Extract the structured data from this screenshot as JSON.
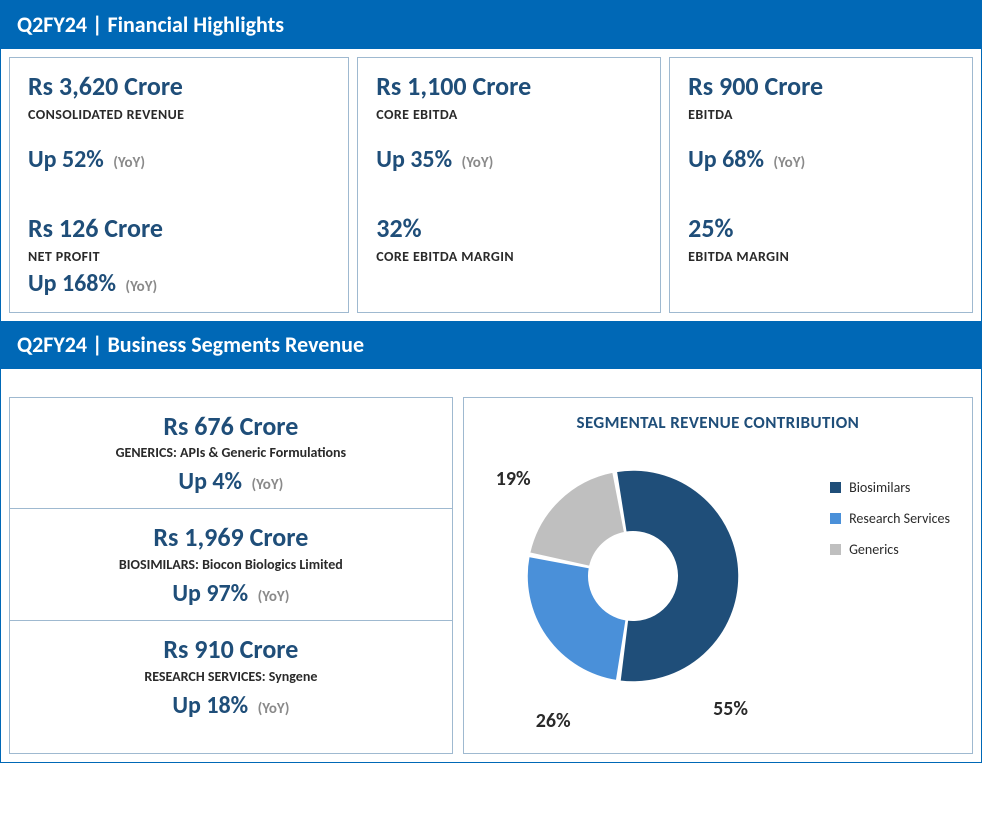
{
  "headers": {
    "financial": "Q2FY24 | Financial Highlights",
    "segments": "Q2FY24 | Business Segments Revenue"
  },
  "yoy_suffix": "(YoY)",
  "highlights": {
    "col1": {
      "m1_value": "Rs 3,620 Crore",
      "m1_label": "CONSOLIDATED REVENUE",
      "m1_change": "Up 52%",
      "m2_value": "Rs 126 Crore",
      "m2_label": "NET PROFIT",
      "m2_change": "Up 168%"
    },
    "col2": {
      "m1_value": "Rs 1,100 Crore",
      "m1_label": "CORE EBITDA",
      "m1_change": "Up 35%",
      "m2_value": "32%",
      "m2_label": "CORE EBITDA MARGIN"
    },
    "col3": {
      "m1_value": "Rs 900 Crore",
      "m1_label": "EBITDA",
      "m1_change": "Up 68%",
      "m2_value": "25%",
      "m2_label": "EBITDA MARGIN"
    }
  },
  "segments": {
    "s1_value": "Rs 676 Crore",
    "s1_label": "GENERICS: APIs & Generic Formulations",
    "s1_change": "Up 4%",
    "s2_value": "Rs 1,969 Crore",
    "s2_label": "BIOSIMILARS: Biocon Biologics Limited",
    "s2_change": "Up 97%",
    "s3_value": "Rs 910 Crore",
    "s3_label": "RESEARCH SERVICES: Syngene",
    "s3_change": "Up 18%"
  },
  "chart": {
    "type": "donut",
    "title": "SEGMENTAL REVENUE CONTRIBUTION",
    "hole_ratio": 0.42,
    "gap_color": "#ffffff",
    "background": "#ffffff",
    "label_fontsize": 20,
    "title_fontsize": 17,
    "title_color": "#1f4e79",
    "slices": [
      {
        "name": "Biosimilars",
        "value": 55,
        "label": "55%",
        "color": "#1f4e79"
      },
      {
        "name": "Research Services",
        "value": 26,
        "label": "26%",
        "color": "#4a90d9"
      },
      {
        "name": "Generics",
        "value": 19,
        "label": "19%",
        "color": "#bfbfbf"
      }
    ],
    "legend": [
      {
        "label": "Biosimilars",
        "color": "#1f4e79"
      },
      {
        "label": "Research Services",
        "color": "#4a90d9"
      },
      {
        "label": "Generics",
        "color": "#bfbfbf"
      }
    ],
    "data_labels": {
      "pct55": "55%",
      "pct26": "26%",
      "pct19": "19%"
    },
    "start_angle_deg": -10
  },
  "colors": {
    "header_bg": "#0068b6",
    "accent": "#1f4e79",
    "border": "#9fb9d0"
  }
}
